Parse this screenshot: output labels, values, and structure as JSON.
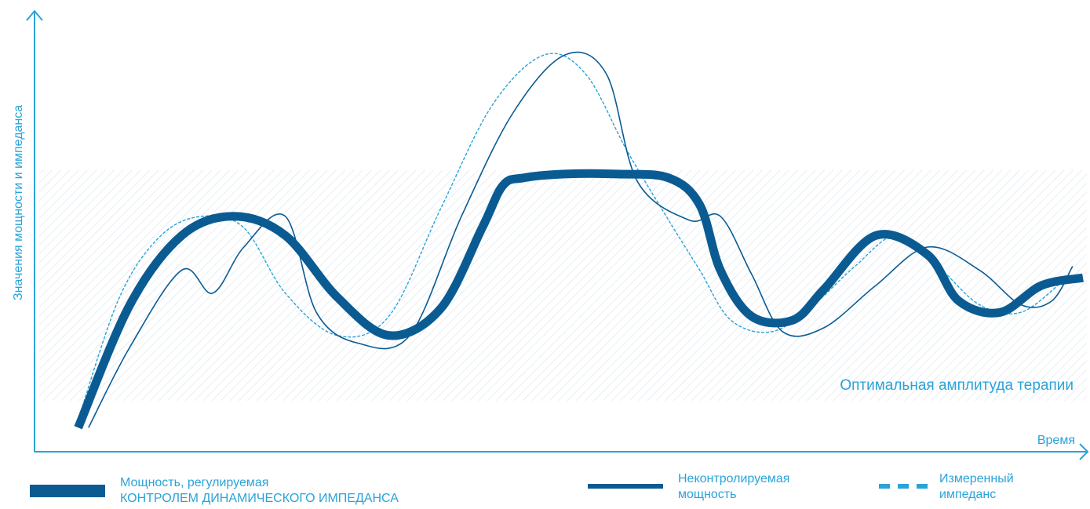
{
  "colors": {
    "axis": "#2aa3d8",
    "regulated": "#0b5b93",
    "uncontrolled": "#0b5b93",
    "impedance": "#2aa3d8",
    "band_hatch": "#d9e3ea",
    "text": "#2aa3d8"
  },
  "chart_data": {
    "type": "line",
    "ylabel": "Значения мощности и импеданса",
    "xlabel": "Время",
    "xlim": [
      0,
      1
    ],
    "ylim": [
      0,
      1
    ],
    "grid": false,
    "legend_position": "bottom",
    "band": {
      "label": "Оптимальная амплитуда терапии",
      "y_from": 0.1,
      "y_to": 0.7
    },
    "series": [
      {
        "name_line1": "Мощность, регулируемая",
        "name_line2": "КОНТРОЛЕМ ДИНАМИЧЕСКОГО ИМПЕДАНСА",
        "style": "thick",
        "x": [
          0.03,
          0.08,
          0.13,
          0.18,
          0.23,
          0.28,
          0.33,
          0.38,
          0.42,
          0.44,
          0.46,
          0.5,
          0.55,
          0.6,
          0.63,
          0.65,
          0.68,
          0.72,
          0.75,
          0.8,
          0.85,
          0.88,
          0.92,
          0.96,
          1.0
        ],
        "y": [
          0.03,
          0.35,
          0.53,
          0.58,
          0.53,
          0.37,
          0.27,
          0.34,
          0.55,
          0.66,
          0.68,
          0.69,
          0.69,
          0.68,
          0.61,
          0.44,
          0.32,
          0.31,
          0.39,
          0.53,
          0.48,
          0.36,
          0.33,
          0.4,
          0.42
        ]
      },
      {
        "name_line1": "Неконтролируемая",
        "name_line2": "мощность",
        "style": "thin",
        "x": [
          0.04,
          0.08,
          0.13,
          0.16,
          0.19,
          0.23,
          0.26,
          0.3,
          0.35,
          0.4,
          0.45,
          0.5,
          0.54,
          0.57,
          0.62,
          0.65,
          0.68,
          0.71,
          0.75,
          0.8,
          0.85,
          0.9,
          0.94,
          0.97,
          0.99
        ],
        "y": [
          0.03,
          0.24,
          0.44,
          0.38,
          0.5,
          0.58,
          0.33,
          0.25,
          0.27,
          0.58,
          0.85,
          1.0,
          0.95,
          0.67,
          0.57,
          0.58,
          0.43,
          0.28,
          0.29,
          0.4,
          0.5,
          0.44,
          0.35,
          0.36,
          0.45
        ]
      },
      {
        "name_line1": "Измеренный",
        "name_line2": "импеданс",
        "style": "dashed",
        "x": [
          0.03,
          0.07,
          0.11,
          0.15,
          0.19,
          0.23,
          0.28,
          0.33,
          0.38,
          0.43,
          0.48,
          0.52,
          0.56,
          0.6,
          0.63,
          0.66,
          0.7,
          0.74,
          0.78,
          0.82,
          0.86,
          0.9,
          0.94,
          0.98
        ],
        "y": [
          0.05,
          0.37,
          0.53,
          0.58,
          0.55,
          0.38,
          0.27,
          0.32,
          0.6,
          0.87,
          1.0,
          0.95,
          0.75,
          0.57,
          0.44,
          0.31,
          0.28,
          0.35,
          0.45,
          0.53,
          0.45,
          0.35,
          0.33,
          0.41
        ]
      }
    ]
  }
}
